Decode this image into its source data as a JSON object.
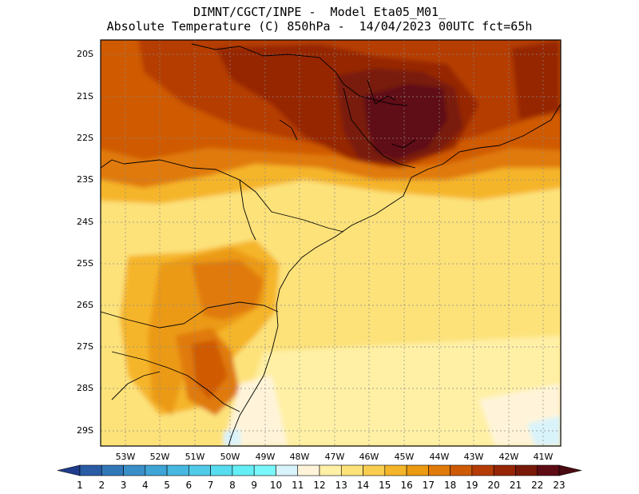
{
  "header": {
    "line1": "DIMNT/CGCT/INPE -  Model Eta05_M01_",
    "line2": "Absolute Temperature (C) 850hPa -  14/04/2023 00UTC fct=65h"
  },
  "map": {
    "lat_labels": [
      "20S",
      "21S",
      "22S",
      "23S",
      "24S",
      "25S",
      "26S",
      "27S",
      "28S",
      "29S"
    ],
    "lon_labels": [
      "53W",
      "52W",
      "51W",
      "50W",
      "49W",
      "48W",
      "47W",
      "46W",
      "45W",
      "44W",
      "43W",
      "42W",
      "41W"
    ]
  },
  "colorbar": {
    "levels": [
      "1",
      "2",
      "3",
      "4",
      "5",
      "6",
      "7",
      "8",
      "9",
      "10",
      "11",
      "12",
      "13",
      "14",
      "15",
      "16",
      "17",
      "18",
      "19",
      "20",
      "21",
      "22",
      "23"
    ],
    "colors": [
      "#1f3d8c",
      "#2a5ca6",
      "#3278b8",
      "#3a8fc8",
      "#3fa4d6",
      "#47b8e0",
      "#50cbe8",
      "#58dcef",
      "#64eef5",
      "#7af7fb",
      "#d9f3fb",
      "#fff4d9",
      "#fff0a6",
      "#fde27a",
      "#f9cd4f",
      "#f5b52a",
      "#eb9a12",
      "#e07a0a",
      "#cf5a06",
      "#b53c05",
      "#962605",
      "#791a09",
      "#5e0c14",
      "#4a0a12"
    ]
  }
}
